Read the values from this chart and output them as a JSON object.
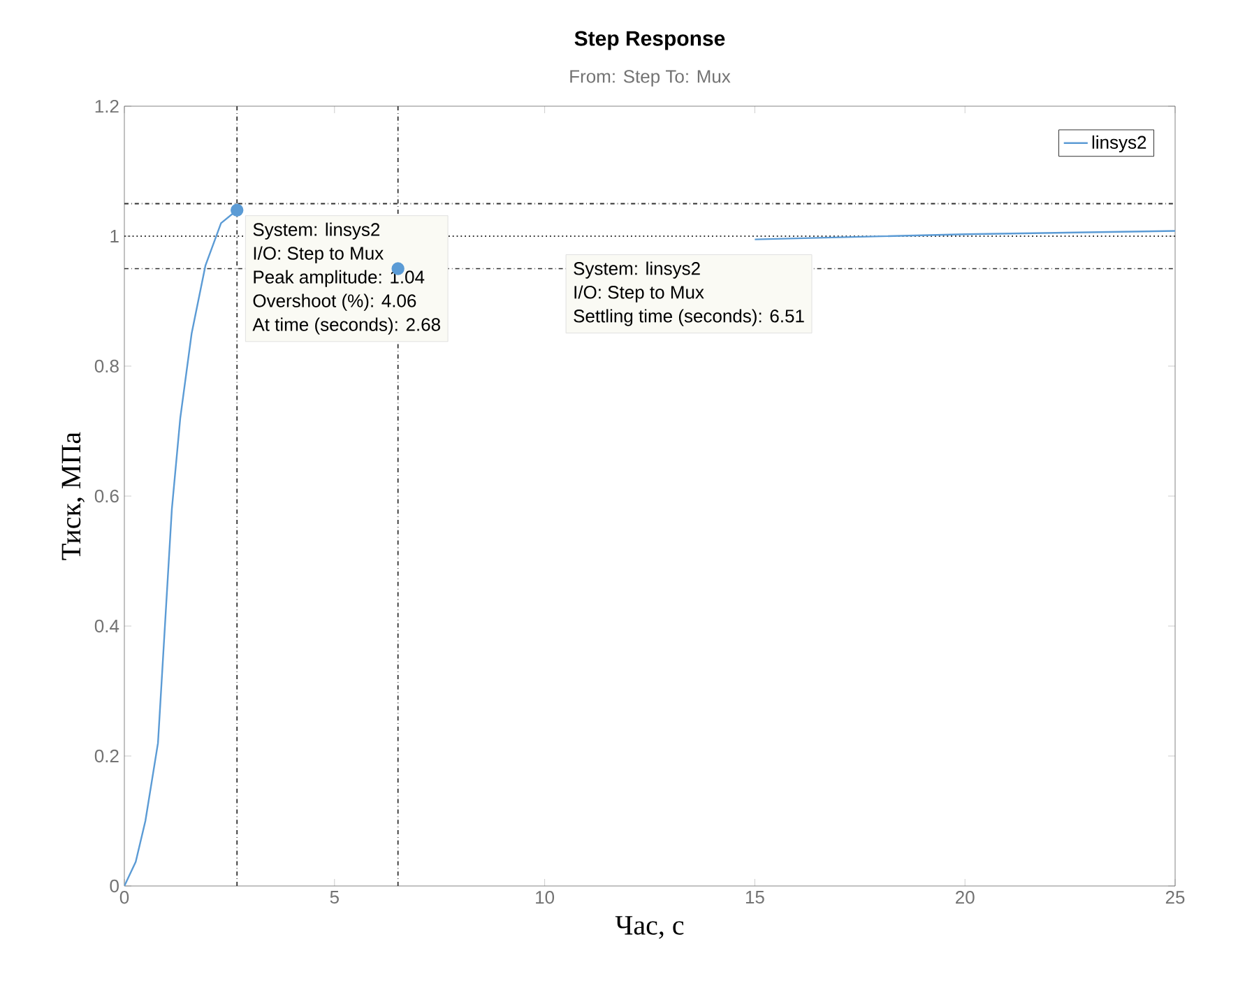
{
  "chart_data": {
    "type": "line",
    "title": "Step Response",
    "subtitle": "From: Step  To: Mux",
    "xlabel": "Час, с",
    "ylabel": "Тиск, МПа",
    "xlim": [
      0,
      25
    ],
    "ylim": [
      0,
      1.2
    ],
    "xticks": [
      0,
      5,
      10,
      15,
      20,
      25
    ],
    "yticks": [
      0,
      0.2,
      0.4,
      0.6,
      0.8,
      1,
      1.2
    ],
    "grid": false,
    "legend": "top right",
    "line_style": "solid",
    "series": [
      {
        "name": "linsys2",
        "color": "#5b9bd5",
        "x": [
          0,
          0.27,
          0.5,
          0.8,
          1.13,
          1.33,
          1.6,
          1.93,
          2.3,
          2.68,
          6,
          15,
          20,
          25
        ],
        "values": [
          0,
          0.037,
          0.1,
          0.22,
          0.58,
          0.72,
          0.85,
          0.955,
          1.02,
          1.04,
          null,
          0.995,
          1.003,
          1.008
        ]
      },
      {
        "type": "scatter",
        "color": "#5b9bd5",
        "x": [
          2.68,
          6.51
        ],
        "values": [
          1.04,
          0.95
        ]
      }
    ],
    "ref_lines": [
      {
        "axis": "y",
        "value": 1.05,
        "line_style": "dashdot",
        "color": "#303030"
      },
      {
        "axis": "y",
        "value": 0.95,
        "line_style": "dashdot",
        "color": "#303030"
      },
      {
        "axis": "y",
        "value": 1,
        "line_style": "dotted",
        "color": "#303030"
      },
      {
        "axis": "x",
        "value": 2.68,
        "line_style": "dashdot",
        "color": "#303030"
      },
      {
        "axis": "x",
        "value": 6.51,
        "line_style": "dashdot",
        "color": "#303030"
      }
    ],
    "annotations": [
      "System: linsys2",
      "I/O: Step to Mux",
      "Peak amplitude: 1.04",
      "Overshoot (%): 4.06",
      "At time (seconds): 2.68",
      "System: linsys2",
      "I/O: Step to Mux",
      "Settling time (seconds): 6.51"
    ]
  }
}
